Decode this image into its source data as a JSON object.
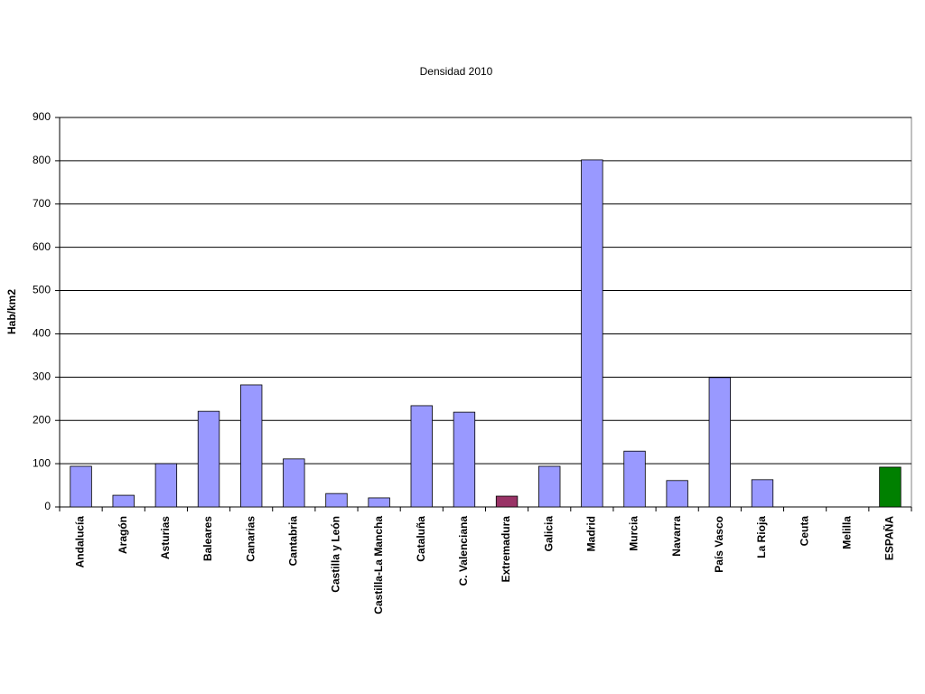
{
  "chart_data": {
    "type": "bar",
    "title": "Densidad 2010",
    "y_label": "Hab/km2",
    "categories": [
      "Andalucía",
      "Aragón",
      "Asturias",
      "Baleares",
      "Canarias",
      "Cantabria",
      "Castilla y León",
      "Castilla-La Mancha",
      "Cataluña",
      "C. Valenciana",
      "Extremadura",
      "Galicia",
      "Madrid",
      "Murcia",
      "Navarra",
      "País Vasco",
      "La Rioja",
      "Ceuta",
      "Melilla",
      "ESPAÑA"
    ],
    "values": [
      94,
      27,
      100,
      221,
      282,
      111,
      31,
      21,
      234,
      219,
      25,
      94,
      802,
      129,
      61,
      299,
      63,
      null,
      null,
      92
    ],
    "colors": [
      "#9999ff",
      "#9999ff",
      "#9999ff",
      "#9999ff",
      "#9999ff",
      "#9999ff",
      "#9999ff",
      "#9999ff",
      "#9999ff",
      "#9999ff",
      "#993366",
      "#9999ff",
      "#9999ff",
      "#9999ff",
      "#9999ff",
      "#9999ff",
      "#9999ff",
      "#9999ff",
      "#9999ff",
      "#008000"
    ],
    "ylim": [
      0,
      900
    ],
    "yticks": [
      0,
      100,
      200,
      300,
      400,
      500,
      600,
      700,
      800,
      900
    ],
    "grid": true
  }
}
